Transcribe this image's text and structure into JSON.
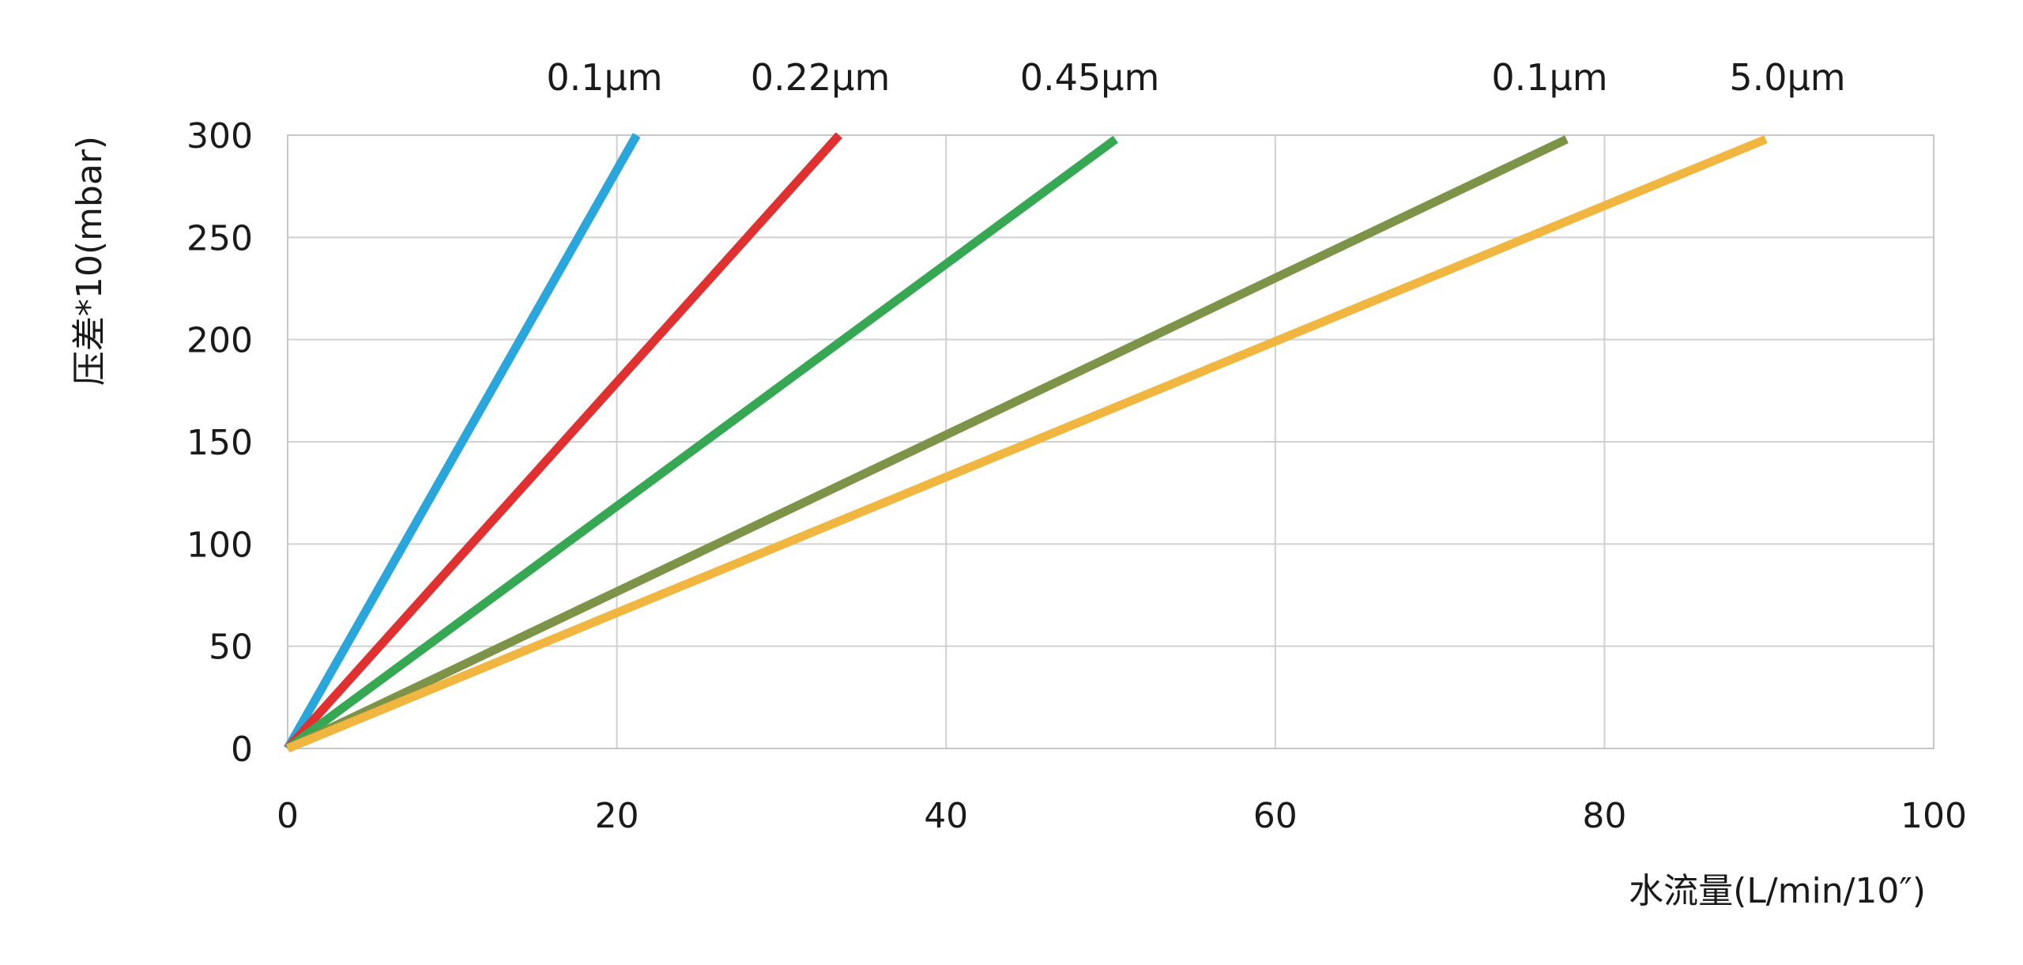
{
  "chart_data": {
    "type": "line",
    "title": "",
    "xlabel": "水流量(L/min/10″)",
    "ylabel": "压差*10(mbar)",
    "xlim": [
      0,
      100
    ],
    "ylim": [
      0,
      300
    ],
    "x_ticks": [
      "0",
      "20",
      "40",
      "60",
      "80",
      "100"
    ],
    "y_ticks": [
      "0",
      "50",
      "100",
      "150",
      "200",
      "250",
      "300"
    ],
    "grid": true,
    "legend": "labels at line ends, top",
    "series": [
      {
        "name": "0.1µm",
        "color": "#29a6dc",
        "x": [
          0,
          21.2
        ],
        "y": [
          0,
          300
        ]
      },
      {
        "name": "0.22µm",
        "color": "#e0302f",
        "x": [
          0,
          33.5
        ],
        "y": [
          0,
          300
        ]
      },
      {
        "name": "0.45µm",
        "color": "#36a853",
        "x": [
          0,
          50.3
        ],
        "y": [
          0,
          298
        ]
      },
      {
        "name": "0.1µm",
        "color": "#7d9448",
        "x": [
          0,
          77.7
        ],
        "y": [
          0,
          298
        ]
      },
      {
        "name": "5.0µm",
        "color": "#f0b63f",
        "x": [
          0,
          89.8
        ],
        "y": [
          0,
          298
        ]
      }
    ]
  }
}
